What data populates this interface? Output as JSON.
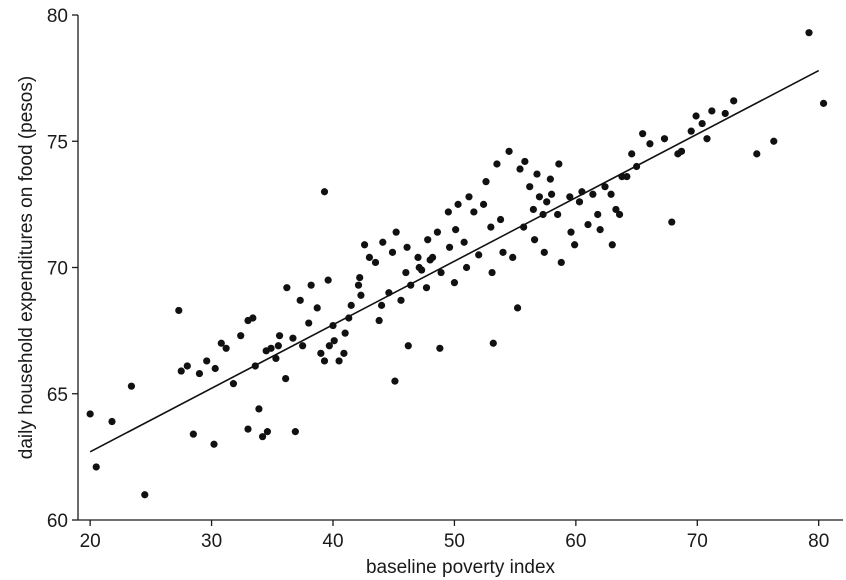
{
  "chart_data": {
    "type": "scatter",
    "title": "",
    "xlabel": "baseline poverty index",
    "ylabel": "daily household expenditures on food (pesos)",
    "xlim": [
      19,
      82
    ],
    "ylim": [
      60,
      80
    ],
    "xticks": [
      20,
      30,
      40,
      50,
      60,
      70,
      80
    ],
    "yticks": [
      60,
      65,
      70,
      75,
      80
    ],
    "grid": false,
    "legend": "none",
    "point_color": "#111111",
    "trend_line": {
      "x": [
        20,
        80
      ],
      "y": [
        62.7,
        77.8
      ]
    },
    "points": {
      "x": [
        20.0,
        20.5,
        21.8,
        23.4,
        24.5,
        27.3,
        27.5,
        28.5,
        30.2,
        31.2,
        31.8,
        33.0,
        33.6,
        34.6,
        35.5,
        29.0,
        30.3,
        33.9,
        34.9,
        35.6,
        36.1,
        28.0,
        29.6,
        30.8,
        32.4,
        33.4,
        34.5,
        35.3,
        36.7,
        37.5,
        36.2,
        37.3,
        38.0,
        38.7,
        39.3,
        39.6,
        40.1,
        40.9,
        41.5,
        42.1,
        38.2,
        39.0,
        39.7,
        40.5,
        41.3,
        42.2,
        43.0,
        44.1,
        45.2,
        46.1,
        40.0,
        41.0,
        42.3,
        43.8,
        44.6,
        45.6,
        46.4,
        47.3,
        48.0,
        48.9,
        42.6,
        43.5,
        44.9,
        46.0,
        47.0,
        47.8,
        48.6,
        49.5,
        50.3,
        51.2,
        47.1,
        47.7,
        48.2,
        49.6,
        50.1,
        50.8,
        51.6,
        52.4,
        53.0,
        53.8,
        50.0,
        51.0,
        52.0,
        53.1,
        54.0,
        54.8,
        55.7,
        56.5,
        57.3,
        58.0,
        52.6,
        53.5,
        54.5,
        55.4,
        56.2,
        57.0,
        57.9,
        58.6,
        59.5,
        60.3,
        55.8,
        56.8,
        57.6,
        58.5,
        59.6,
        60.5,
        61.4,
        62.4,
        63.3,
        64.2,
        56.6,
        57.4,
        58.8,
        59.9,
        61.0,
        61.8,
        62.9,
        63.8,
        64.6,
        65.5,
        62.0,
        63.0,
        63.6,
        65.0,
        66.1,
        67.3,
        68.4,
        69.5,
        70.4,
        71.2,
        67.9,
        68.7,
        69.9,
        70.8,
        72.3,
        73.0,
        74.9,
        76.3,
        79.2,
        80.4,
        39.3,
        33.0,
        34.2,
        36.9,
        45.1,
        46.2,
        53.2,
        44.0,
        48.8,
        55.2
      ],
      "y": [
        64.2,
        62.1,
        63.9,
        65.3,
        61.0,
        68.3,
        65.9,
        63.4,
        63.0,
        66.8,
        65.4,
        67.9,
        66.1,
        63.5,
        66.9,
        65.8,
        66.0,
        64.4,
        66.8,
        67.3,
        65.6,
        66.1,
        66.3,
        67.0,
        67.3,
        68.0,
        66.7,
        66.4,
        67.2,
        66.9,
        69.2,
        68.7,
        67.8,
        68.4,
        66.3,
        69.5,
        67.1,
        66.6,
        68.5,
        69.3,
        69.3,
        66.6,
        66.9,
        66.3,
        68.0,
        69.6,
        70.4,
        71.0,
        71.4,
        70.8,
        67.7,
        67.4,
        68.9,
        67.9,
        69.0,
        68.7,
        69.3,
        69.9,
        70.3,
        69.8,
        70.9,
        70.2,
        70.6,
        69.8,
        70.4,
        71.1,
        71.4,
        72.2,
        72.5,
        72.8,
        70.0,
        69.2,
        70.4,
        70.8,
        71.5,
        71.0,
        72.2,
        72.5,
        71.6,
        71.9,
        69.4,
        70.0,
        70.5,
        69.8,
        70.6,
        70.4,
        71.6,
        72.3,
        72.1,
        72.9,
        73.4,
        74.1,
        74.6,
        73.9,
        73.2,
        72.8,
        73.5,
        74.1,
        72.8,
        72.6,
        74.2,
        73.7,
        72.6,
        72.1,
        71.4,
        73.0,
        72.9,
        73.2,
        72.3,
        73.6,
        71.1,
        70.6,
        70.2,
        70.9,
        71.7,
        72.1,
        72.9,
        73.6,
        74.5,
        75.3,
        71.5,
        70.9,
        72.1,
        74.0,
        74.9,
        75.1,
        74.5,
        75.4,
        75.7,
        76.2,
        71.8,
        74.6,
        76.0,
        75.1,
        76.1,
        76.6,
        74.5,
        75.0,
        79.3,
        76.5,
        73.0,
        63.6,
        63.3,
        63.5,
        65.5,
        66.9,
        67.0,
        68.5,
        66.8,
        68.4
      ]
    }
  }
}
